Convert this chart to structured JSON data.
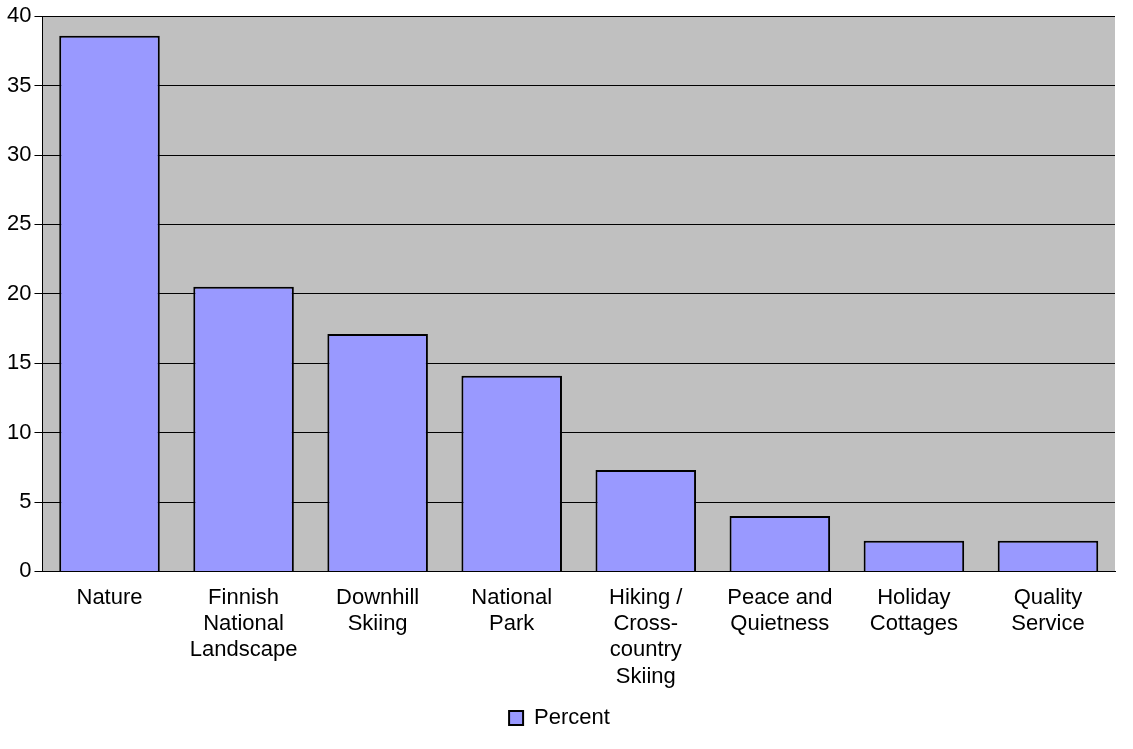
{
  "chart_data": {
    "type": "bar",
    "categories": [
      "Nature",
      "Finnish National Landscape",
      "Downhill Skiing",
      "National Park",
      "Hiking / Cross-country Skiing",
      "Peace and Quietness",
      "Holiday Cottages",
      "Quality Service"
    ],
    "series": [
      {
        "name": "Percent",
        "color": "#9999ff",
        "values": [
          38.6,
          20.5,
          17.1,
          14.1,
          7.3,
          4.0,
          2.2,
          2.2
        ]
      }
    ],
    "ylim": [
      0,
      40
    ],
    "yticks": [
      0,
      5,
      10,
      15,
      20,
      25,
      30,
      35,
      40
    ],
    "grid": "y",
    "legend": "bottom"
  }
}
